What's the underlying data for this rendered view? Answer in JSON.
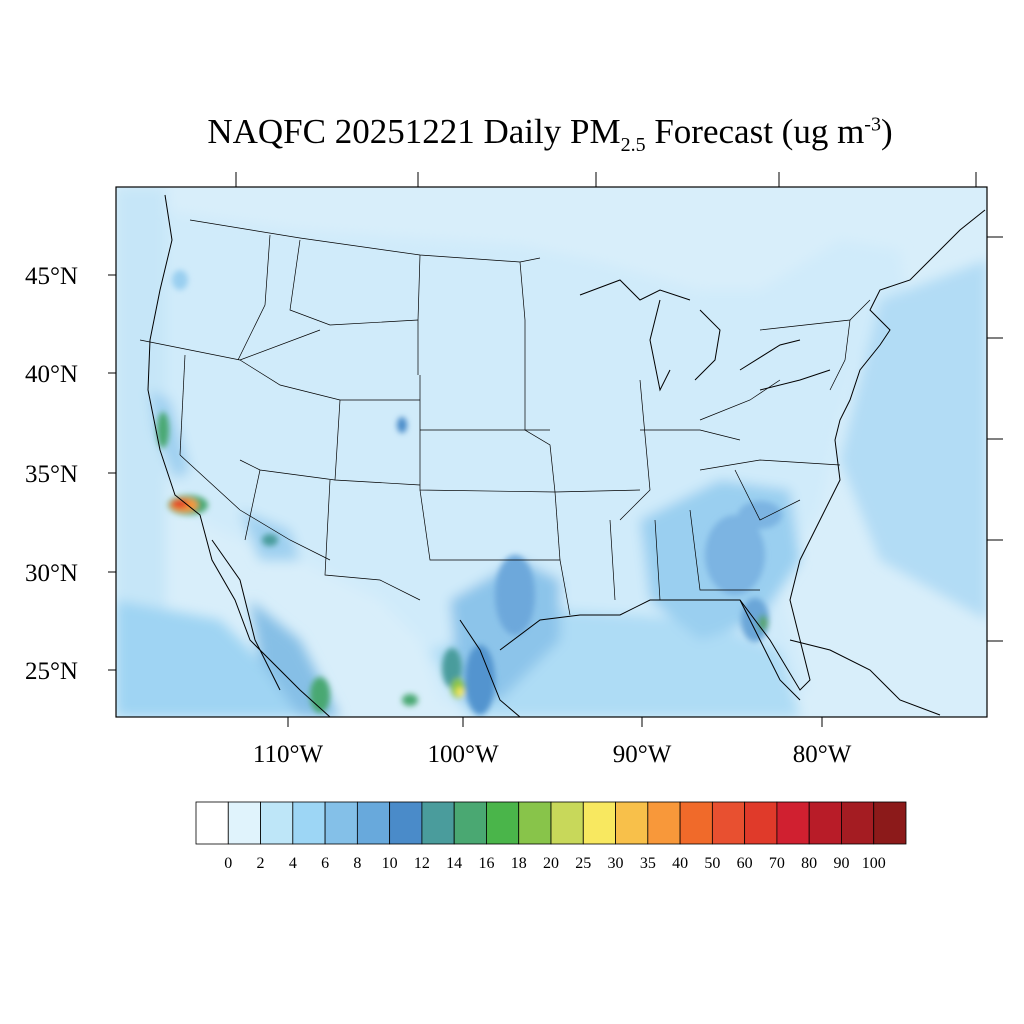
{
  "title": {
    "prefix": "NAQFC 20251221 Daily PM",
    "subscript": "2.5",
    "middle": " Forecast (ug m",
    "superscript": "-3",
    "suffix": ")"
  },
  "map": {
    "lat_labels": [
      "45°N",
      "40°N",
      "35°N",
      "30°N",
      "25°N"
    ],
    "lon_labels": [
      "110°W",
      "100°W",
      "90°W",
      "80°W"
    ]
  },
  "colorbar": {
    "labels": [
      "0",
      "2",
      "4",
      "6",
      "8",
      "10",
      "12",
      "14",
      "16",
      "18",
      "20",
      "25",
      "30",
      "35",
      "40",
      "50",
      "60",
      "70",
      "80",
      "90",
      "100"
    ],
    "colors": [
      "#ffffff",
      "#e0f3fc",
      "#bee6f8",
      "#9dd6f5",
      "#84c0e8",
      "#68a9dc",
      "#4a8bc9",
      "#4a9c9c",
      "#4aa872",
      "#4ab54a",
      "#88c44a",
      "#c8d85a",
      "#f8e860",
      "#f8c04a",
      "#f8983a",
      "#f06a2a",
      "#e85030",
      "#e03a2a",
      "#d02030",
      "#b81c28",
      "#a41c22",
      "#8c1a1a"
    ]
  },
  "colors": {
    "ocean": "#d8eefa",
    "land_base": "#d4ecfa",
    "border": "#000000"
  }
}
